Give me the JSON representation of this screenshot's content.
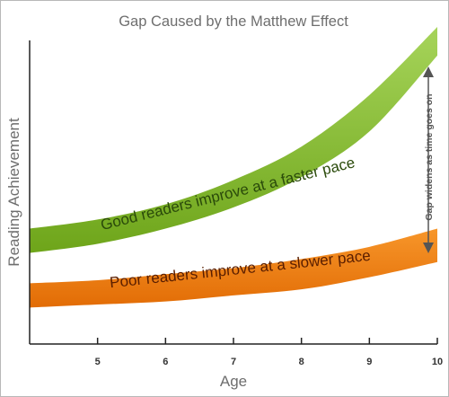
{
  "chart_data": {
    "type": "area",
    "title": "Gap Caused by the Matthew Effect",
    "xlabel": "Age",
    "ylabel": "Reading Achievement",
    "x_ticks": [
      5,
      6,
      7,
      8,
      9,
      10
    ],
    "xlim": [
      4,
      10
    ],
    "series": [
      {
        "label": "Good readers improve at a faster pace",
        "color": "#7ab51d",
        "x": [
          4,
          5,
          6,
          7,
          8,
          9,
          10
        ],
        "lower": [
          0.3,
          0.33,
          0.38,
          0.45,
          0.55,
          0.7,
          0.95
        ],
        "upper": [
          0.38,
          0.41,
          0.46,
          0.54,
          0.65,
          0.82,
          1.12
        ]
      },
      {
        "label": "Poor readers improve at a slower pace",
        "color": "#f07d0f",
        "x": [
          4,
          5,
          6,
          7,
          8,
          9,
          10
        ],
        "lower": [
          0.12,
          0.13,
          0.14,
          0.16,
          0.18,
          0.22,
          0.27
        ],
        "upper": [
          0.2,
          0.21,
          0.23,
          0.25,
          0.28,
          0.32,
          0.38
        ]
      }
    ],
    "annotation": "Gap widens as time goes on",
    "grid": false
  }
}
